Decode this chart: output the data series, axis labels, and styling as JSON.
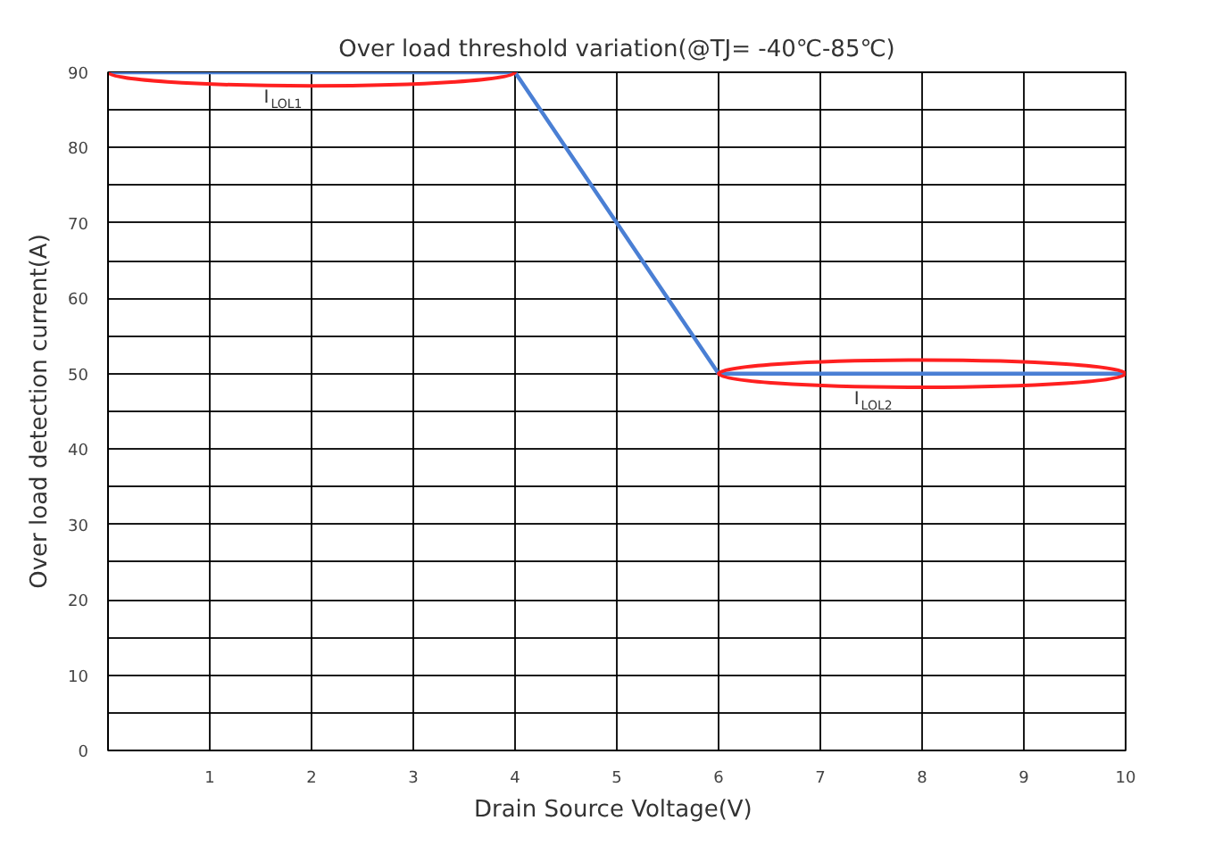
{
  "chart_data": {
    "type": "line",
    "title": "Over load threshold variation(@TJ= -40℃-85℃)",
    "xlabel": "Drain Source  Voltage(V)",
    "ylabel": "Over load detection current(A)",
    "x": [
      0,
      4,
      6,
      10
    ],
    "series": [
      {
        "color": "#4a7fd4",
        "values": [
          90,
          90,
          50,
          50
        ]
      }
    ],
    "xlim": [
      0,
      10
    ],
    "ylim": [
      0,
      90
    ],
    "xticks": [
      1,
      2,
      3,
      4,
      5,
      6,
      7,
      8,
      9,
      10
    ],
    "yticks": [
      0,
      {
        "value": 5,
        "label": null
      },
      10,
      {
        "value": 15,
        "label": null
      },
      20,
      {
        "value": 25,
        "label": null
      },
      30,
      {
        "value": 35,
        "label": null
      },
      40,
      {
        "value": 45,
        "label": null
      },
      50,
      {
        "value": 55,
        "label": null
      },
      60,
      {
        "value": 65,
        "label": null
      },
      70,
      {
        "value": 75,
        "label": null
      },
      80,
      {
        "value": 85,
        "label": null
      },
      90
    ],
    "grid": true,
    "marker": "none",
    "line_style": "solid",
    "annotations": [
      {
        "text": "I$_{LOL1}$",
        "x": 1.6,
        "y": 90
      },
      {
        "text": "I$_{LOL2}$",
        "x": 7.4,
        "y": 50
      }
    ]
  }
}
